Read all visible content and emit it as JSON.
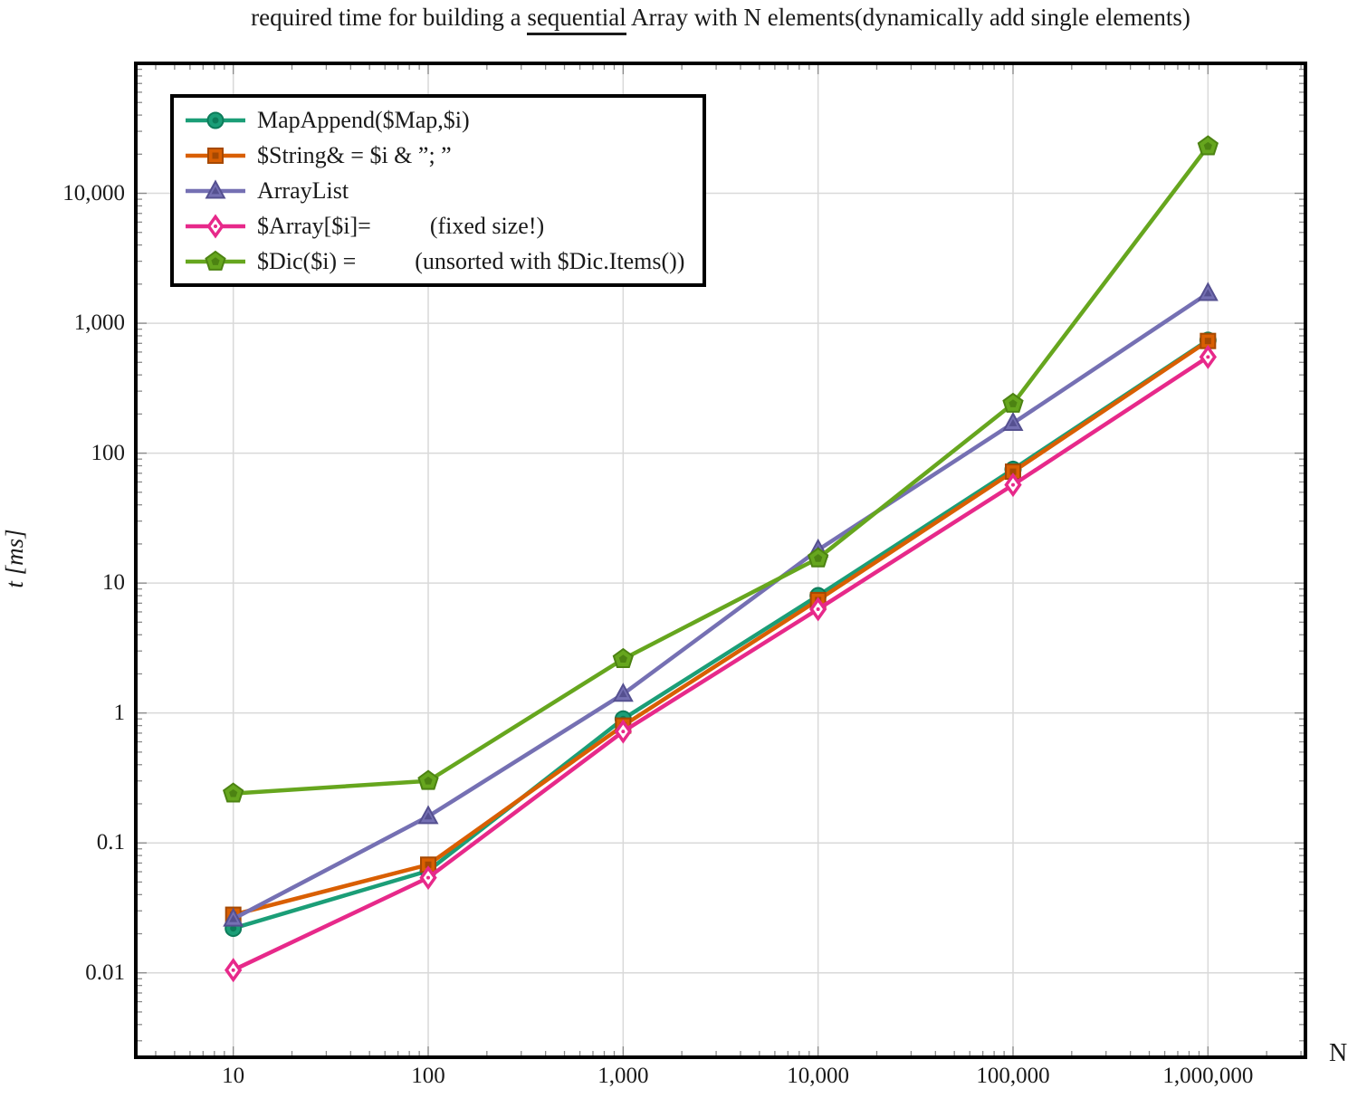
{
  "title": {
    "prefix": "required time for building a ",
    "underlined": "sequential",
    "suffix": " Array with N elements(dynamically add single elements)"
  },
  "axes": {
    "y_label": "t [ms]",
    "x_label": "N"
  },
  "colors": {
    "background": "#ffffff",
    "frame": "#000000",
    "grid": "#d9d9d9",
    "tick": "#8a8a8a",
    "text": "#1a1a1a"
  },
  "chart_data": {
    "type": "line",
    "title": "required time for building a sequential Array with N elements(dynamically add single elements)",
    "xlabel": "N",
    "ylabel": "t [ms]",
    "x_scale": "log",
    "y_scale": "log",
    "grid": true,
    "legend_position": "top-left",
    "xlim": [
      3.162,
      3162278
    ],
    "ylim": [
      0.00224,
      100000
    ],
    "x": [
      10,
      100,
      1000,
      10000,
      100000,
      1000000
    ],
    "x_ticks": [
      {
        "value": 10,
        "label": "10"
      },
      {
        "value": 100,
        "label": "100"
      },
      {
        "value": 1000,
        "label": "1,000"
      },
      {
        "value": 10000,
        "label": "10,000"
      },
      {
        "value": 100000,
        "label": "100,000"
      },
      {
        "value": 1000000,
        "label": "1,000,000"
      }
    ],
    "y_ticks": [
      {
        "value": 10000,
        "label": "10,000"
      },
      {
        "value": 1000,
        "label": "1,000"
      },
      {
        "value": 100,
        "label": "100"
      },
      {
        "value": 10,
        "label": "10"
      },
      {
        "value": 1,
        "label": "1"
      },
      {
        "value": 0.1,
        "label": "0.1"
      },
      {
        "value": 0.01,
        "label": "0.01"
      }
    ],
    "series": [
      {
        "name": "MapAppend($Map,$i)",
        "marker": "circle",
        "color": "#1b9e77",
        "edge": "#0d7c5a",
        "values": [
          0.022,
          0.061,
          0.9,
          8,
          75,
          740
        ]
      },
      {
        "name": "$String& = $i & ”; ”",
        "marker": "square",
        "color": "#d95f02",
        "edge": "#a64902",
        "values": [
          0.028,
          0.068,
          0.8,
          7.4,
          72,
          730
        ]
      },
      {
        "name": "ArrayList",
        "marker": "triangle",
        "color": "#7570b3",
        "edge": "#555090",
        "values": [
          0.026,
          0.16,
          1.4,
          18,
          170,
          1700
        ]
      },
      {
        "name": "$Array[$i]=          (fixed size!)",
        "marker": "diamond-open",
        "color": "#e7298a",
        "edge": "#b51f6c",
        "values": [
          0.0105,
          0.054,
          0.72,
          6.3,
          57,
          550
        ]
      },
      {
        "name": "$Dic($i) =          (unsorted with $Dic.Items())",
        "marker": "pentagon",
        "color": "#66a61e",
        "edge": "#4c8312",
        "values": [
          0.24,
          0.3,
          2.6,
          15.5,
          240,
          23000
        ]
      }
    ]
  }
}
